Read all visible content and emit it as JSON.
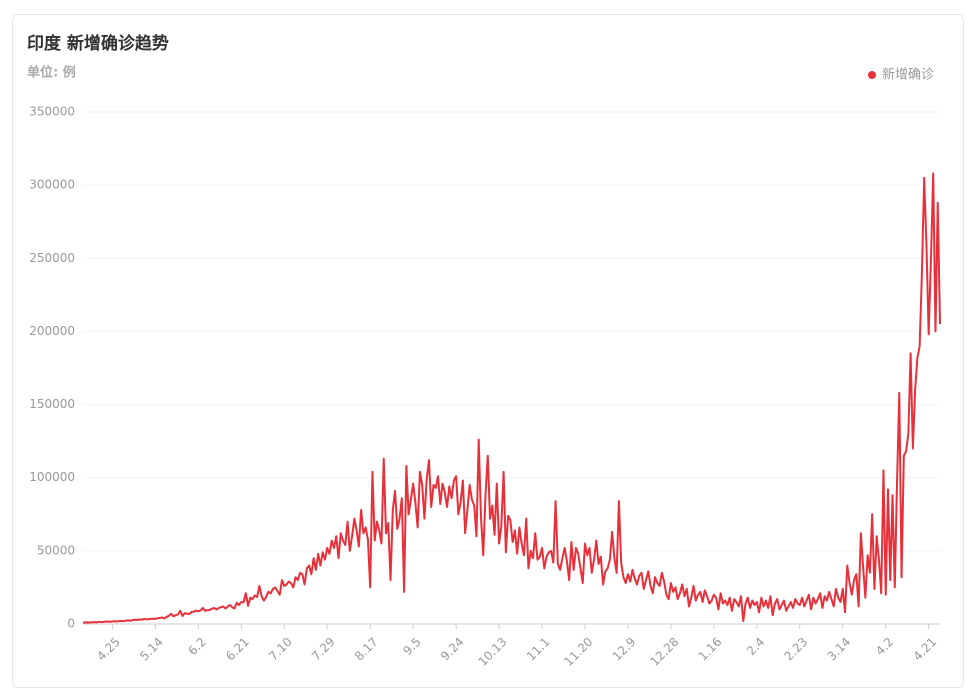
{
  "chart_data": {
    "type": "line",
    "title": "印度 新增确诊趋势",
    "subtitle": "单位: 例",
    "legend": "top-right",
    "grid": true,
    "categories": [
      null,
      null,
      null,
      null,
      null,
      null,
      null,
      null,
      null,
      null,
      null,
      null,
      null,
      "4.25",
      null,
      null,
      null,
      null,
      null,
      null,
      null,
      null,
      null,
      null,
      null,
      null,
      null,
      null,
      null,
      null,
      null,
      null,
      "5.14",
      null,
      null,
      null,
      null,
      null,
      null,
      null,
      null,
      null,
      null,
      null,
      null,
      null,
      null,
      null,
      null,
      null,
      null,
      "6.2",
      null,
      null,
      null,
      null,
      null,
      null,
      null,
      null,
      null,
      null,
      null,
      null,
      null,
      null,
      null,
      null,
      null,
      null,
      "6.21",
      null,
      null,
      null,
      null,
      null,
      null,
      null,
      null,
      null,
      null,
      null,
      null,
      null,
      null,
      null,
      null,
      null,
      null,
      "7.10",
      null,
      null,
      null,
      null,
      null,
      null,
      null,
      null,
      null,
      null,
      null,
      null,
      null,
      null,
      null,
      null,
      null,
      null,
      "7.29",
      null,
      null,
      null,
      null,
      null,
      null,
      null,
      null,
      null,
      null,
      null,
      null,
      null,
      null,
      null,
      null,
      null,
      null,
      "8.17",
      null,
      null,
      null,
      null,
      null,
      null,
      null,
      null,
      null,
      null,
      null,
      null,
      null,
      null,
      null,
      null,
      null,
      null,
      "9.5",
      null,
      null,
      null,
      null,
      null,
      null,
      null,
      null,
      null,
      null,
      null,
      null,
      null,
      null,
      null,
      null,
      null,
      null,
      "9.24",
      null,
      null,
      null,
      null,
      null,
      null,
      null,
      null,
      null,
      null,
      null,
      null,
      null,
      null,
      null,
      null,
      null,
      null,
      "10.13",
      null,
      null,
      null,
      null,
      null,
      null,
      null,
      null,
      null,
      null,
      null,
      null,
      null,
      null,
      null,
      null,
      null,
      null,
      "11.1",
      null,
      null,
      null,
      null,
      null,
      null,
      null,
      null,
      null,
      null,
      null,
      null,
      null,
      null,
      null,
      null,
      null,
      null,
      "11.20",
      null,
      null,
      null,
      null,
      null,
      null,
      null,
      null,
      null,
      null,
      null,
      null,
      null,
      null,
      null,
      null,
      null,
      null,
      "12.9",
      null,
      null,
      null,
      null,
      null,
      null,
      null,
      null,
      null,
      null,
      null,
      null,
      null,
      null,
      null,
      null,
      null,
      null,
      "12.28",
      null,
      null,
      null,
      null,
      null,
      null,
      null,
      null,
      null,
      null,
      null,
      null,
      null,
      null,
      null,
      null,
      null,
      null,
      "1.16",
      null,
      null,
      null,
      null,
      null,
      null,
      null,
      null,
      null,
      null,
      null,
      null,
      null,
      null,
      null,
      null,
      null,
      null,
      "2.4",
      null,
      null,
      null,
      null,
      null,
      null,
      null,
      null,
      null,
      null,
      null,
      null,
      null,
      null,
      null,
      null,
      null,
      null,
      "2.23",
      null,
      null,
      null,
      null,
      null,
      null,
      null,
      null,
      null,
      null,
      null,
      null,
      null,
      null,
      null,
      null,
      null,
      null,
      "3.14",
      null,
      null,
      null,
      null,
      null,
      null,
      null,
      null,
      null,
      null,
      null,
      null,
      null,
      null,
      null,
      null,
      null,
      null,
      "4.2",
      null,
      null,
      null,
      null,
      null,
      null,
      null,
      null,
      null,
      null,
      null,
      null,
      null,
      null,
      null,
      null,
      null,
      null,
      "4.21",
      null,
      null,
      null,
      null,
      null
    ],
    "series": [
      {
        "name": "新增确诊",
        "color": "#e8303a",
        "values": [
          900,
          1000,
          1100,
          1000,
          1200,
          1300,
          1100,
          1500,
          1300,
          1400,
          1600,
          1700,
          1500,
          1800,
          1900,
          1700,
          2000,
          2100,
          1900,
          2300,
          2500,
          2200,
          2700,
          2900,
          2800,
          3100,
          3000,
          3400,
          3200,
          3300,
          3500,
          3600,
          3500,
          3900,
          4100,
          4500,
          3800,
          4900,
          5600,
          7000,
          5200,
          6100,
          6500,
          9000,
          5500,
          7400,
          7100,
          6800,
          8300,
          8400,
          9200,
          8700,
          9300,
          11000,
          9000,
          9500,
          9600,
          10500,
          11000,
          9900,
          10900,
          11500,
          12000,
          10600,
          11900,
          13000,
          11400,
          10600,
          14500,
          13000,
          15000,
          14800,
          21000,
          12500,
          18000,
          17000,
          19500,
          18500,
          26000,
          19000,
          16000,
          18500,
          22000,
          21000,
          24000,
          25000,
          22500,
          20000,
          30000,
          26000,
          27000,
          29000,
          28000,
          25000,
          32000,
          30000,
          35000,
          34000,
          27000,
          38000,
          40000,
          34000,
          45000,
          37000,
          48000,
          40000,
          49000,
          44000,
          52000,
          48000,
          57000,
          52000,
          60000,
          45000,
          62000,
          57000,
          54000,
          70000,
          50000,
          60000,
          72000,
          64000,
          53000,
          78000,
          62000,
          66000,
          58000,
          25000,
          104000,
          57000,
          70000,
          64000,
          55000,
          113000,
          62000,
          69000,
          30000,
          78000,
          91000,
          65000,
          72000,
          86000,
          22000,
          108000,
          75000,
          85000,
          96000,
          83000,
          66000,
          104000,
          95000,
          72000,
          99000,
          112000,
          80000,
          95000,
          93000,
          101000,
          82000,
          96000,
          90000,
          80000,
          94000,
          86000,
          98000,
          101000,
          75000,
          83000,
          98000,
          62000,
          78000,
          95000,
          85000,
          81000,
          60000,
          126000,
          73000,
          47000,
          88000,
          115000,
          72000,
          81000,
          61000,
          96000,
          55000,
          67000,
          104000,
          49000,
          74000,
          71000,
          56000,
          64000,
          48000,
          66000,
          55000,
          47000,
          72000,
          38000,
          50000,
          45000,
          62000,
          44000,
          46000,
          52000,
          38000,
          46000,
          49000,
          50000,
          42000,
          84000,
          41000,
          37000,
          45000,
          52000,
          43000,
          30000,
          56000,
          37000,
          52000,
          48000,
          38000,
          28000,
          55000,
          47000,
          52000,
          35000,
          44000,
          57000,
          41000,
          46000,
          27000,
          36000,
          38000,
          44000,
          63000,
          45000,
          35000,
          84000,
          42000,
          32000,
          28000,
          34000,
          29000,
          37000,
          31000,
          27000,
          33000,
          35000,
          24000,
          30000,
          36000,
          26000,
          21000,
          32000,
          28000,
          26000,
          35000,
          29000,
          20000,
          17000,
          28000,
          22000,
          25000,
          17000,
          21000,
          27000,
          19000,
          24000,
          12000,
          18000,
          26000,
          16000,
          20000,
          22000,
          15000,
          23000,
          19000,
          14000,
          16000,
          20000,
          18000,
          10000,
          21000,
          14000,
          16000,
          13000,
          18000,
          9000,
          17000,
          15000,
          12000,
          19000,
          2000,
          14000,
          18000,
          11000,
          16000,
          13000,
          15000,
          8000,
          18000,
          12000,
          16000,
          11000,
          19000,
          6000,
          14000,
          17000,
          10000,
          13000,
          16000,
          9000,
          12000,
          15000,
          11000,
          17000,
          14000,
          13000,
          18000,
          12000,
          16000,
          20000,
          10000,
          18000,
          14000,
          17000,
          21000,
          11000,
          19000,
          16000,
          22000,
          17000,
          12000,
          24000,
          18000,
          15000,
          24000,
          8000,
          40000,
          28000,
          20000,
          30000,
          34000,
          12000,
          62000,
          39000,
          18000,
          47000,
          35000,
          75000,
          24000,
          60000,
          44000,
          21000,
          105000,
          20000,
          92000,
          30000,
          88000,
          25000,
          97000,
          158000,
          32000,
          115000,
          118000,
          130000,
          185000,
          120000,
          160000,
          182000,
          190000,
          240000,
          305000,
          260000,
          198000,
          250000,
          308000,
          200000,
          288000,
          205000
        ]
      }
    ],
    "ylim": [
      0,
      350000
    ],
    "yticks": [
      0,
      50000,
      100000,
      150000,
      200000,
      250000,
      300000,
      350000
    ]
  }
}
